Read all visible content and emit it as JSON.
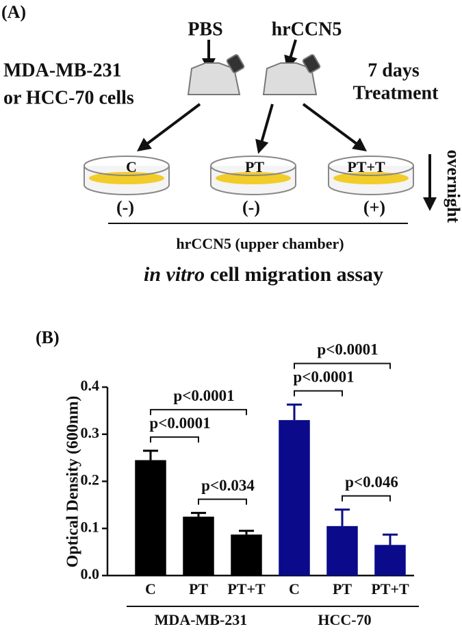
{
  "diagram": {
    "panel_label": "(A)",
    "reagents": [
      "PBS",
      "hrCCN5"
    ],
    "cells": [
      "MDA-MB-231",
      "or HCC-70 cells"
    ],
    "treatment": [
      "7 days",
      "Treatment"
    ],
    "wells": [
      {
        "label": "C",
        "sign": "(-)"
      },
      {
        "label": "PT",
        "sign": "(-)"
      },
      {
        "label": "PT+T",
        "sign": "(+)"
      }
    ],
    "time": "overnight",
    "chamber": "hrCCN5 (upper chamber)",
    "assay_italic": "in vitro",
    "assay": "cell migration assay"
  },
  "chart_data": {
    "type": "bar",
    "panel_label": "(B)",
    "y_label": "Optical Density (600nm)",
    "categories": [
      "C",
      "PT",
      "PT+T",
      "C",
      "PT",
      "PT+T"
    ],
    "groups": [
      {
        "name": "MDA-MB-231",
        "from": 0,
        "to": 2
      },
      {
        "name": "HCC-70",
        "from": 3,
        "to": 5
      }
    ],
    "values": [
      0.245,
      0.125,
      0.087,
      0.33,
      0.105,
      0.065
    ],
    "errors": [
      0.02,
      0.008,
      0.008,
      0.033,
      0.035,
      0.022
    ],
    "colors": [
      "#000000",
      "#000000",
      "#000000",
      "#0a0a8a",
      "#0a0a8a",
      "#0a0a8a"
    ],
    "ylim": [
      0,
      0.4
    ],
    "yticks": [
      {
        "value": 0,
        "label": "0.0"
      },
      0.1,
      0.2,
      0.3,
      0.4
    ],
    "comparisons": [
      {
        "from": 0,
        "to": 2,
        "label": "p<0.0001"
      },
      {
        "from": 0,
        "to": 1,
        "label": "p<0.0001"
      },
      {
        "from": 1,
        "to": 2,
        "label": "p<0.034"
      },
      {
        "from": 3,
        "to": 5,
        "label": "p<0.0001"
      },
      {
        "from": 3,
        "to": 4,
        "label": "p<0.0001"
      },
      {
        "from": 4,
        "to": 5,
        "label": "p<0.046"
      }
    ]
  }
}
